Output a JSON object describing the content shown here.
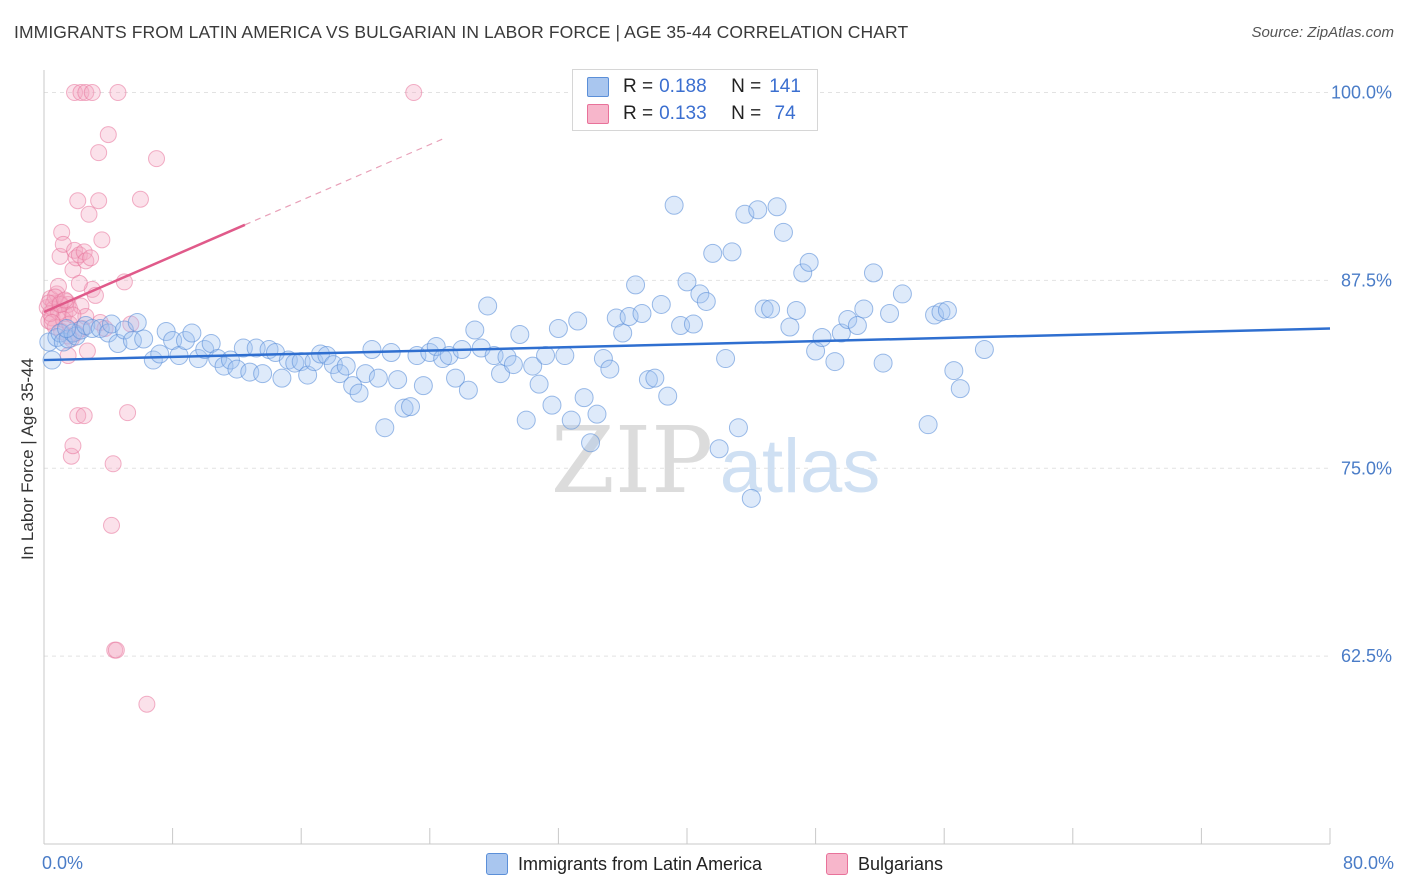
{
  "title": "IMMIGRANTS FROM LATIN AMERICA VS BULGARIAN IN LABOR FORCE | AGE 35-44 CORRELATION CHART",
  "source": "Source: ZipAtlas.com",
  "watermark": {
    "zip": "ZIP",
    "atlas": "atlas"
  },
  "colors": {
    "blue": "#5b8fd8",
    "blue_fill": "rgba(160,196,240,0.35)",
    "pink": "#e8729a",
    "pink_fill": "rgba(244,170,196,0.35)",
    "grid": "#e2e2e2",
    "axis_text": "#4a7cc7"
  },
  "legend": {
    "rows": [
      {
        "r_label": "R = ",
        "r_value": "0.188",
        "n_label": "N = ",
        "n_value": "141",
        "color": "#a9c6ef"
      },
      {
        "r_label": "R = ",
        "r_value": "0.133",
        "n_label": "N = ",
        "n_value": " 74",
        "color": "#f7b6cb"
      }
    ]
  },
  "bottom_legend": [
    {
      "label": "Immigrants from Latin America",
      "color": "#a9c6ef"
    },
    {
      "label": "Bulgarians",
      "color": "#f7b6cb"
    }
  ],
  "chart_data": {
    "type": "scatter",
    "title": "IMMIGRANTS FROM LATIN AMERICA VS BULGARIAN IN LABOR FORCE | AGE 35-44 CORRELATION CHART",
    "xlabel": "",
    "ylabel": "In Labor Force | Age 35-44",
    "xlim": [
      0,
      80
    ],
    "ylim": [
      50,
      101.5
    ],
    "x_tick_labels": [
      "0.0%",
      "80.0%"
    ],
    "y_ticks": [
      62.5,
      75.0,
      87.5,
      100.0
    ],
    "y_tick_labels": [
      "62.5%",
      "75.0%",
      "87.5%",
      "100.0%"
    ],
    "grid": true,
    "legend_position": "top-center",
    "series": [
      {
        "name": "Immigrants from Latin America",
        "R": 0.188,
        "N": 141,
        "trend": {
          "x": [
            0,
            80
          ],
          "y": [
            82.2,
            84.3
          ]
        },
        "points": [
          [
            0.3,
            83.4
          ],
          [
            0.5,
            82.2
          ],
          [
            0.8,
            83.7
          ],
          [
            1.0,
            84.0
          ],
          [
            1.2,
            83.4
          ],
          [
            1.5,
            83.6
          ],
          [
            1.8,
            84.0
          ],
          [
            2.0,
            83.8
          ],
          [
            2.3,
            84.2
          ],
          [
            2.6,
            84.5
          ],
          [
            3.0,
            84.3
          ],
          [
            3.5,
            84.3
          ],
          [
            4.0,
            84.0
          ],
          [
            4.2,
            84.6
          ],
          [
            4.6,
            83.3
          ],
          [
            5.0,
            84.2
          ],
          [
            5.5,
            83.5
          ],
          [
            5.8,
            84.7
          ],
          [
            6.2,
            83.6
          ],
          [
            6.8,
            82.2
          ],
          [
            7.2,
            82.6
          ],
          [
            7.6,
            84.1
          ],
          [
            8.0,
            83.5
          ],
          [
            8.4,
            82.5
          ],
          [
            8.8,
            83.5
          ],
          [
            9.2,
            84.0
          ],
          [
            9.6,
            82.3
          ],
          [
            10.0,
            82.9
          ],
          [
            10.4,
            83.3
          ],
          [
            10.8,
            82.3
          ],
          [
            11.2,
            81.8
          ],
          [
            11.6,
            82.2
          ],
          [
            12.0,
            81.6
          ],
          [
            12.4,
            83.0
          ],
          [
            12.8,
            81.4
          ],
          [
            13.2,
            83.0
          ],
          [
            13.6,
            81.3
          ],
          [
            14.0,
            82.9
          ],
          [
            14.4,
            82.7
          ],
          [
            14.8,
            81.0
          ],
          [
            15.2,
            82.2
          ],
          [
            15.6,
            82.0
          ],
          [
            16.0,
            82.1
          ],
          [
            16.4,
            81.2
          ],
          [
            16.8,
            82.1
          ],
          [
            17.2,
            82.6
          ],
          [
            17.6,
            82.5
          ],
          [
            18.0,
            81.9
          ],
          [
            18.4,
            81.3
          ],
          [
            18.8,
            81.8
          ],
          [
            19.2,
            80.5
          ],
          [
            19.6,
            80.0
          ],
          [
            20.0,
            81.3
          ],
          [
            20.4,
            82.9
          ],
          [
            20.8,
            81.0
          ],
          [
            21.2,
            77.7
          ],
          [
            21.6,
            82.7
          ],
          [
            22.0,
            80.9
          ],
          [
            22.4,
            79.0
          ],
          [
            22.8,
            79.1
          ],
          [
            23.2,
            82.5
          ],
          [
            23.6,
            80.5
          ],
          [
            24.0,
            82.7
          ],
          [
            24.4,
            83.1
          ],
          [
            24.8,
            82.3
          ],
          [
            25.2,
            82.5
          ],
          [
            25.6,
            81.0
          ],
          [
            26.0,
            82.9
          ],
          [
            26.4,
            80.2
          ],
          [
            26.8,
            84.2
          ],
          [
            27.2,
            83.0
          ],
          [
            27.6,
            85.8
          ],
          [
            28.0,
            82.5
          ],
          [
            28.4,
            81.3
          ],
          [
            28.8,
            82.4
          ],
          [
            29.2,
            81.9
          ],
          [
            29.6,
            83.9
          ],
          [
            30.0,
            78.2
          ],
          [
            30.4,
            81.8
          ],
          [
            30.8,
            80.6
          ],
          [
            31.2,
            82.5
          ],
          [
            31.6,
            79.2
          ],
          [
            32.0,
            84.3
          ],
          [
            32.4,
            82.5
          ],
          [
            32.8,
            78.2
          ],
          [
            33.2,
            84.8
          ],
          [
            33.6,
            79.7
          ],
          [
            34.0,
            76.7
          ],
          [
            34.4,
            78.6
          ],
          [
            34.8,
            82.3
          ],
          [
            35.2,
            81.6
          ],
          [
            35.6,
            85.0
          ],
          [
            36.0,
            84.0
          ],
          [
            36.4,
            85.1
          ],
          [
            36.8,
            87.2
          ],
          [
            37.2,
            85.3
          ],
          [
            37.6,
            80.9
          ],
          [
            38.0,
            81.0
          ],
          [
            38.4,
            85.9
          ],
          [
            38.8,
            79.8
          ],
          [
            39.2,
            92.5
          ],
          [
            39.6,
            84.5
          ],
          [
            40.0,
            87.4
          ],
          [
            40.4,
            84.6
          ],
          [
            40.8,
            86.6
          ],
          [
            41.2,
            86.1
          ],
          [
            41.6,
            89.3
          ],
          [
            42.0,
            76.3
          ],
          [
            42.4,
            82.3
          ],
          [
            42.8,
            89.4
          ],
          [
            43.2,
            77.7
          ],
          [
            43.6,
            91.9
          ],
          [
            44.0,
            73.0
          ],
          [
            44.4,
            92.2
          ],
          [
            44.8,
            85.6
          ],
          [
            45.2,
            85.6
          ],
          [
            45.6,
            92.4
          ],
          [
            46.0,
            90.7
          ],
          [
            46.4,
            84.4
          ],
          [
            46.8,
            85.5
          ],
          [
            47.2,
            88.0
          ],
          [
            47.6,
            88.7
          ],
          [
            48.0,
            82.8
          ],
          [
            48.4,
            83.7
          ],
          [
            49.2,
            82.1
          ],
          [
            49.6,
            84.0
          ],
          [
            50.0,
            84.9
          ],
          [
            50.6,
            84.5
          ],
          [
            51.0,
            85.6
          ],
          [
            51.6,
            88.0
          ],
          [
            52.2,
            82.0
          ],
          [
            52.6,
            85.3
          ],
          [
            53.4,
            86.6
          ],
          [
            55.0,
            77.9
          ],
          [
            55.4,
            85.2
          ],
          [
            55.8,
            85.4
          ],
          [
            56.2,
            85.5
          ],
          [
            56.6,
            81.5
          ],
          [
            57.0,
            80.3
          ],
          [
            58.5,
            82.9
          ],
          [
            1.4,
            84.3
          ]
        ]
      },
      {
        "name": "Bulgarians",
        "R": 0.133,
        "N": 74,
        "trend": {
          "x": [
            0,
            25
          ],
          "y": [
            85.4,
            97.0
          ]
        },
        "trend_solid_end_x": 12.5,
        "points": [
          [
            0.2,
            85.7
          ],
          [
            0.3,
            84.8
          ],
          [
            0.4,
            86.3
          ],
          [
            0.5,
            85.0
          ],
          [
            0.6,
            86.0
          ],
          [
            0.6,
            85.6
          ],
          [
            0.7,
            84.4
          ],
          [
            0.8,
            86.6
          ],
          [
            0.9,
            87.1
          ],
          [
            1.0,
            86.0
          ],
          [
            1.0,
            89.1
          ],
          [
            1.1,
            90.7
          ],
          [
            1.2,
            89.9
          ],
          [
            1.3,
            85.3
          ],
          [
            1.4,
            86.1
          ],
          [
            1.5,
            85.9
          ],
          [
            1.5,
            82.5
          ],
          [
            1.6,
            85.6
          ],
          [
            1.7,
            83.6
          ],
          [
            1.8,
            88.2
          ],
          [
            1.9,
            89.5
          ],
          [
            2.0,
            89.0
          ],
          [
            2.1,
            92.8
          ],
          [
            2.2,
            89.2
          ],
          [
            2.3,
            85.8
          ],
          [
            2.4,
            84.3
          ],
          [
            2.5,
            89.4
          ],
          [
            2.6,
            88.8
          ],
          [
            2.7,
            82.8
          ],
          [
            2.8,
            91.9
          ],
          [
            2.9,
            89.0
          ],
          [
            3.0,
            86.9
          ],
          [
            3.2,
            86.5
          ],
          [
            3.4,
            92.8
          ],
          [
            3.5,
            84.7
          ],
          [
            3.6,
            90.2
          ],
          [
            3.8,
            84.3
          ],
          [
            4.0,
            97.2
          ],
          [
            4.2,
            71.2
          ],
          [
            4.3,
            75.3
          ],
          [
            4.4,
            62.9
          ],
          [
            4.5,
            62.9
          ],
          [
            5.0,
            87.4
          ],
          [
            5.2,
            78.7
          ],
          [
            5.4,
            84.6
          ],
          [
            6.0,
            92.9
          ],
          [
            6.4,
            59.3
          ],
          [
            7.0,
            95.6
          ],
          [
            3.4,
            96.0
          ],
          [
            2.1,
            78.5
          ],
          [
            1.7,
            75.8
          ],
          [
            1.8,
            76.5
          ],
          [
            2.5,
            78.5
          ],
          [
            1.9,
            100.0
          ],
          [
            2.3,
            100.0
          ],
          [
            2.6,
            100.0
          ],
          [
            3.0,
            100.0
          ],
          [
            4.6,
            100.0
          ],
          [
            23.0,
            100.0
          ],
          [
            2.0,
            84.0
          ],
          [
            0.9,
            85.4
          ],
          [
            1.2,
            84.9
          ],
          [
            0.4,
            85.3
          ],
          [
            0.7,
            86.4
          ],
          [
            1.1,
            84.1
          ],
          [
            1.5,
            83.8
          ],
          [
            2.2,
            87.3
          ],
          [
            2.6,
            85.1
          ],
          [
            0.3,
            86.0
          ],
          [
            0.5,
            84.7
          ],
          [
            1.0,
            85.9
          ],
          [
            1.3,
            86.2
          ],
          [
            1.6,
            84.6
          ],
          [
            1.8,
            85.2
          ]
        ]
      }
    ]
  }
}
